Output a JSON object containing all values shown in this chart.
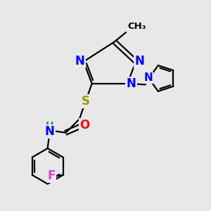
{
  "background_color": "#e8e8e8",
  "atom_colors": {
    "N": "#0000ff",
    "S": "#999900",
    "O": "#ff0000",
    "F": "#cc44cc",
    "NH_color": "#2e8b57",
    "H_color": "#2e8b57",
    "C": "#000000"
  },
  "bond_color": "#000000",
  "figsize": [
    3.0,
    3.0
  ],
  "dpi": 100,
  "xlim": [
    0,
    10
  ],
  "ylim": [
    0,
    10
  ]
}
